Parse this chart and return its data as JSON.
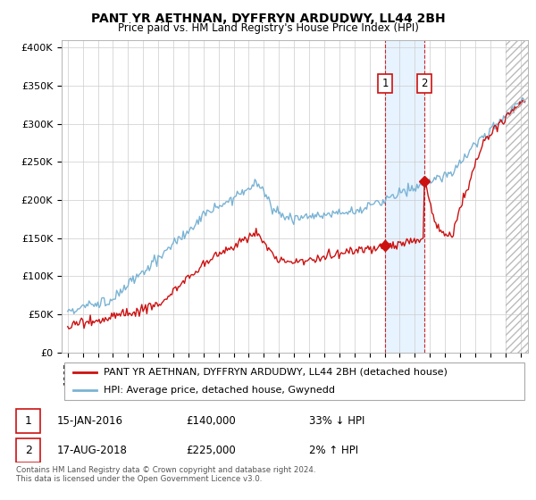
{
  "title": "PANT YR AETHNAN, DYFFRYN ARDUDWY, LL44 2BH",
  "subtitle": "Price paid vs. HM Land Registry's House Price Index (HPI)",
  "hpi_color": "#7ab3d4",
  "price_color": "#cc1111",
  "annotation_box_facecolor": "white",
  "annotation_box_edgecolor": "#cc1111",
  "shade_color": "#ddeeff",
  "hatch_color": "#cccccc",
  "legend_label_price": "PANT YR AETHNAN, DYFFRYN ARDUDWY, LL44 2BH (detached house)",
  "legend_label_hpi": "HPI: Average price, detached house, Gwynedd",
  "transaction1": {
    "label": "1",
    "date": "15-JAN-2016",
    "price": "£140,000",
    "hpi": "33% ↓ HPI"
  },
  "transaction2": {
    "label": "2",
    "date": "17-AUG-2018",
    "price": "£225,000",
    "hpi": "2% ↑ HPI"
  },
  "footnote": "Contains HM Land Registry data © Crown copyright and database right 2024.\nThis data is licensed under the Open Government Licence v3.0.",
  "ylim": [
    0,
    410000
  ],
  "yticks": [
    0,
    50000,
    100000,
    150000,
    200000,
    250000,
    300000,
    350000,
    400000
  ],
  "ytick_labels": [
    "£0",
    "£50K",
    "£100K",
    "£150K",
    "£200K",
    "£250K",
    "£300K",
    "£350K",
    "£400K"
  ],
  "t1_x": 2016.04,
  "t1_y": 140000,
  "t2_x": 2018.63,
  "t2_y": 225000,
  "hatch_start": 2024.0,
  "xlim_start": 1994.6,
  "xlim_end": 2025.5
}
